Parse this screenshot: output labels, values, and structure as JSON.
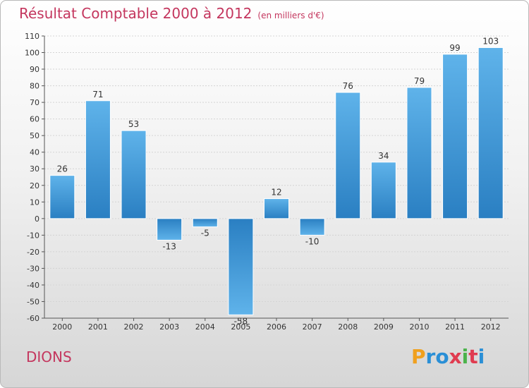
{
  "chart_data": {
    "type": "bar",
    "title": "Résultat Comptable 2000 à 2012",
    "subtitle": "(en milliers d'€)",
    "categories": [
      "2000",
      "2001",
      "2002",
      "2003",
      "2004",
      "2005",
      "2006",
      "2007",
      "2008",
      "2009",
      "2010",
      "2011",
      "2012"
    ],
    "values": [
      26,
      71,
      53,
      -13,
      -5,
      -58,
      12,
      -10,
      76,
      34,
      79,
      99,
      103
    ],
    "ylim": [
      -60,
      110
    ],
    "yticks": [
      110,
      100,
      90,
      80,
      70,
      60,
      50,
      40,
      30,
      20,
      10,
      0,
      -10,
      -20,
      -30,
      -40,
      -50,
      -60
    ],
    "xlabel": "",
    "ylabel": "",
    "bar_color": "#4a9fdc"
  },
  "commune": "DIONS",
  "brand": {
    "letters": [
      "P",
      "r",
      "o",
      "x",
      "i",
      "t",
      "i"
    ],
    "colors": [
      "#f0a01e",
      "#2a8fd6",
      "#2a8fd6",
      "#e03c50",
      "#4bb34b",
      "#e03c50",
      "#2a8fd6"
    ]
  }
}
